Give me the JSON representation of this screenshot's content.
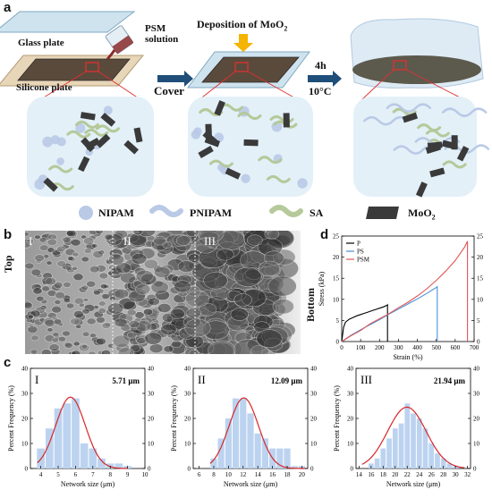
{
  "panel_a": {
    "letter": "a",
    "glass_plate": "Glass plate",
    "silicone_plate": "Silicone plate",
    "psm_solution_line1": "PSM",
    "psm_solution_line2": "solution",
    "cover": "Cover",
    "deposition": "Deposition of MoO",
    "deposition_sub": "2",
    "time": "4h",
    "temp": "10°C",
    "legend": {
      "nipam": "NIPAM",
      "pnipam": "PNIPAM",
      "sa": "SA",
      "moo2": "MoO",
      "moo2_sub": "2"
    },
    "colors": {
      "nipam": "#b9c9e6",
      "pnipam": "#b9c9e6",
      "sa": "#b5c99a",
      "moo2": "#3a3a3a",
      "bubble": "#e3f0f8",
      "arrow": "#1f4e79",
      "highlight": "#e03030",
      "deposition_arrow": "#f4b400"
    }
  },
  "panel_b": {
    "letter": "b",
    "top": "Top",
    "bottom": "Bottom",
    "regions": [
      "I",
      "II",
      "III"
    ]
  },
  "panel_d": {
    "letter": "d"
  },
  "panel_c": {
    "letter": "c"
  },
  "chart_data": [
    {
      "id": "d",
      "type": "line",
      "xlabel": "Strain (%)",
      "ylabel": "Stress (kPa)",
      "xlim": [
        0,
        700
      ],
      "ylim": [
        0,
        25
      ],
      "xticks": [
        0,
        100,
        200,
        300,
        400,
        500,
        600,
        700
      ],
      "yticks": [
        0,
        5,
        10,
        15,
        20,
        25
      ],
      "legend_position": "top-left",
      "series": [
        {
          "name": "P",
          "color": "#000000",
          "x": [
            0,
            10,
            20,
            40,
            60,
            80,
            100,
            120,
            140,
            160,
            180,
            200,
            220,
            240,
            242,
            242
          ],
          "y": [
            0,
            3.4,
            4.6,
            5.3,
            5.7,
            6.1,
            6.4,
            6.7,
            7.0,
            7.3,
            7.6,
            7.9,
            8.2,
            8.6,
            8.7,
            0
          ]
        },
        {
          "name": "PS",
          "color": "#4a90d9",
          "x": [
            0,
            50,
            100,
            150,
            200,
            250,
            300,
            350,
            400,
            450,
            500,
            505,
            505
          ],
          "y": [
            0,
            1.5,
            2.8,
            4.0,
            5.2,
            6.5,
            7.7,
            8.9,
            10.1,
            11.4,
            12.8,
            13.0,
            0
          ]
        },
        {
          "name": "PSM",
          "color": "#e05555",
          "x": [
            0,
            50,
            100,
            150,
            200,
            250,
            300,
            350,
            400,
            450,
            500,
            550,
            600,
            650,
            665,
            665
          ],
          "y": [
            0,
            1.4,
            2.6,
            4.2,
            5.4,
            6.6,
            8.0,
            9.3,
            10.8,
            12.5,
            14.5,
            16.7,
            19.2,
            22.4,
            23.8,
            0
          ]
        }
      ]
    },
    {
      "id": "c-I",
      "type": "bar",
      "roman": "I",
      "annotation": "5.71 μm",
      "xlabel": "Network size (μm)",
      "ylabel": "Percent Frequency (%)",
      "xlim": [
        3.4,
        10
      ],
      "ylim": [
        0,
        40
      ],
      "xticks": [
        4,
        5,
        6,
        7,
        8,
        9,
        10
      ],
      "yticks": [
        0,
        10,
        20,
        30,
        40
      ],
      "bin_width": 0.5,
      "bin_centers": [
        4.0,
        4.5,
        5.0,
        5.5,
        6.0,
        6.5,
        7.0,
        7.5,
        8.0,
        8.5,
        9.0
      ],
      "values": [
        8,
        16,
        24,
        26,
        28,
        10,
        8,
        4,
        2,
        2,
        1
      ],
      "fit_mean": 5.71,
      "fit_sd": 0.85,
      "fit_peak": 28.5,
      "fit_range": [
        3.8,
        9.0
      ]
    },
    {
      "id": "c-II",
      "type": "bar",
      "roman": "II",
      "annotation": "12.09 μm",
      "xlabel": "Network size (μm)",
      "ylabel": "Percent Frequency (%)",
      "xlim": [
        5.2,
        20.8
      ],
      "ylim": [
        0,
        40
      ],
      "xticks": [
        6,
        8,
        10,
        12,
        14,
        16,
        18,
        20
      ],
      "yticks": [
        0,
        10,
        20,
        30,
        40
      ],
      "bin_width": 1.0,
      "bin_centers": [
        8,
        9,
        10,
        11,
        12,
        13,
        14,
        15,
        16,
        17,
        18,
        19,
        20
      ],
      "values": [
        4,
        12,
        20,
        28,
        28,
        22,
        14,
        12,
        8,
        8,
        8,
        1,
        1
      ],
      "fit_mean": 12.09,
      "fit_sd": 2.0,
      "fit_peak": 28.2,
      "fit_range": [
        7.5,
        20.5
      ]
    },
    {
      "id": "c-III",
      "type": "bar",
      "roman": "III",
      "annotation": "21.94 μm",
      "xlabel": "Network size (μm)",
      "ylabel": "Percent Frequency (%)",
      "xlim": [
        13.5,
        32.5
      ],
      "ylim": [
        0,
        40
      ],
      "xticks": [
        14,
        16,
        18,
        20,
        22,
        24,
        26,
        28,
        30,
        32
      ],
      "yticks": [
        0,
        10,
        20,
        30,
        40
      ],
      "bin_width": 1.0,
      "bin_centers": [
        16,
        17,
        18,
        19,
        20,
        21,
        22,
        23,
        24,
        25,
        26,
        27,
        28,
        29,
        30
      ],
      "values": [
        2,
        4,
        8,
        12,
        16,
        18,
        26,
        22,
        20,
        16,
        10,
        6,
        4,
        2,
        1
      ],
      "fit_mean": 21.94,
      "fit_sd": 3.2,
      "fit_peak": 24.5,
      "fit_range": [
        14.5,
        31.5
      ]
    }
  ]
}
